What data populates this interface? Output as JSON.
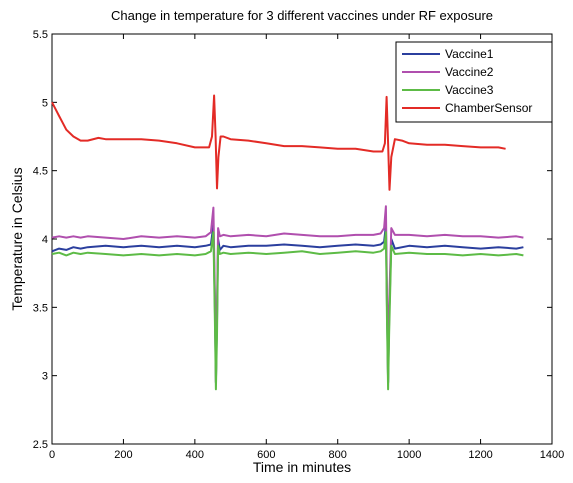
{
  "chart_data": {
    "type": "line",
    "title": "Change in temperature for 3 different vaccines under RF exposure",
    "xlabel": "Time in minutes",
    "ylabel": "Temperature in Celsius",
    "xlim": [
      0,
      1400
    ],
    "ylim": [
      2.5,
      5.5
    ],
    "x_ticks": [
      0,
      200,
      400,
      600,
      800,
      1000,
      1200,
      1400
    ],
    "y_ticks": [
      2.5,
      3,
      3.5,
      4,
      4.5,
      5,
      5.5
    ],
    "x_tick_labels": [
      "0",
      "200",
      "400",
      "600",
      "800",
      "1000",
      "1200",
      "1400"
    ],
    "y_tick_labels": [
      "2.5",
      "3",
      "3.5",
      "4",
      "4.5",
      "5",
      "5.5"
    ],
    "grid": false,
    "legend_position": "top-right",
    "series": [
      {
        "name": "Vaccine1",
        "color": "#2b3f9e",
        "x": [
          0,
          20,
          40,
          60,
          80,
          100,
          150,
          200,
          250,
          300,
          350,
          400,
          430,
          445,
          452,
          456,
          459,
          462,
          465,
          470,
          480,
          500,
          550,
          600,
          650,
          700,
          750,
          800,
          850,
          900,
          920,
          930,
          935,
          938,
          941,
          944,
          950,
          960,
          1000,
          1050,
          1100,
          1150,
          1200,
          1250,
          1300,
          1320
        ],
        "y": [
          3.91,
          3.93,
          3.92,
          3.94,
          3.93,
          3.94,
          3.95,
          3.94,
          3.95,
          3.94,
          3.95,
          3.94,
          3.95,
          3.96,
          4.1,
          3.5,
          2.95,
          3.4,
          4.0,
          3.92,
          3.95,
          3.94,
          3.95,
          3.95,
          3.96,
          3.95,
          3.94,
          3.95,
          3.96,
          3.95,
          3.96,
          3.98,
          4.1,
          3.5,
          2.95,
          3.4,
          4.0,
          3.93,
          3.95,
          3.94,
          3.95,
          3.94,
          3.93,
          3.94,
          3.93,
          3.94
        ]
      },
      {
        "name": "Vaccine2",
        "color": "#b04fae",
        "x": [
          0,
          20,
          40,
          60,
          80,
          100,
          150,
          200,
          250,
          300,
          350,
          400,
          430,
          445,
          452,
          456,
          459,
          462,
          465,
          470,
          480,
          500,
          550,
          600,
          650,
          700,
          750,
          800,
          850,
          900,
          920,
          930,
          935,
          938,
          941,
          944,
          950,
          960,
          1000,
          1050,
          1100,
          1150,
          1200,
          1250,
          1300,
          1320
        ],
        "y": [
          4.01,
          4.02,
          4.01,
          4.02,
          4.01,
          4.02,
          4.01,
          4.0,
          4.02,
          4.01,
          4.02,
          4.01,
          4.02,
          4.05,
          4.23,
          3.6,
          2.95,
          3.5,
          4.08,
          4.02,
          4.03,
          4.02,
          4.03,
          4.02,
          4.04,
          4.03,
          4.02,
          4.02,
          4.03,
          4.03,
          4.04,
          4.08,
          4.24,
          3.6,
          2.95,
          3.5,
          4.08,
          4.03,
          4.03,
          4.02,
          4.03,
          4.02,
          4.02,
          4.01,
          4.02,
          4.01
        ]
      },
      {
        "name": "Vaccine3",
        "color": "#5dbb46",
        "x": [
          0,
          20,
          40,
          60,
          80,
          100,
          150,
          200,
          250,
          300,
          350,
          400,
          430,
          445,
          452,
          456,
          459,
          462,
          465,
          470,
          480,
          500,
          550,
          600,
          650,
          700,
          750,
          800,
          850,
          900,
          920,
          930,
          935,
          938,
          941,
          944,
          950,
          960,
          1000,
          1050,
          1100,
          1150,
          1200,
          1250,
          1300,
          1320
        ],
        "y": [
          3.89,
          3.9,
          3.88,
          3.9,
          3.89,
          3.9,
          3.89,
          3.88,
          3.89,
          3.88,
          3.89,
          3.88,
          3.89,
          3.91,
          4.05,
          3.4,
          2.9,
          3.3,
          3.95,
          3.89,
          3.9,
          3.89,
          3.9,
          3.89,
          3.9,
          3.91,
          3.89,
          3.9,
          3.91,
          3.9,
          3.91,
          3.93,
          4.05,
          3.4,
          2.9,
          3.3,
          3.95,
          3.89,
          3.9,
          3.89,
          3.89,
          3.88,
          3.89,
          3.88,
          3.89,
          3.88
        ]
      },
      {
        "name": "ChamberSensor",
        "color": "#e32b26",
        "x": [
          0,
          10,
          20,
          30,
          40,
          60,
          80,
          100,
          130,
          150,
          200,
          250,
          300,
          350,
          400,
          440,
          448,
          454,
          458,
          462,
          466,
          472,
          480,
          500,
          550,
          600,
          650,
          700,
          750,
          800,
          850,
          900,
          925,
          932,
          937,
          941,
          945,
          950,
          960,
          980,
          1000,
          1050,
          1100,
          1150,
          1200,
          1250,
          1270
        ],
        "y": [
          5.0,
          4.95,
          4.9,
          4.85,
          4.8,
          4.75,
          4.72,
          4.72,
          4.74,
          4.73,
          4.73,
          4.73,
          4.72,
          4.7,
          4.67,
          4.67,
          4.75,
          5.05,
          4.75,
          4.37,
          4.6,
          4.75,
          4.75,
          4.73,
          4.72,
          4.7,
          4.68,
          4.68,
          4.67,
          4.66,
          4.66,
          4.64,
          4.64,
          4.7,
          5.04,
          4.7,
          4.36,
          4.6,
          4.73,
          4.72,
          4.7,
          4.69,
          4.69,
          4.68,
          4.67,
          4.67,
          4.66
        ]
      }
    ]
  }
}
